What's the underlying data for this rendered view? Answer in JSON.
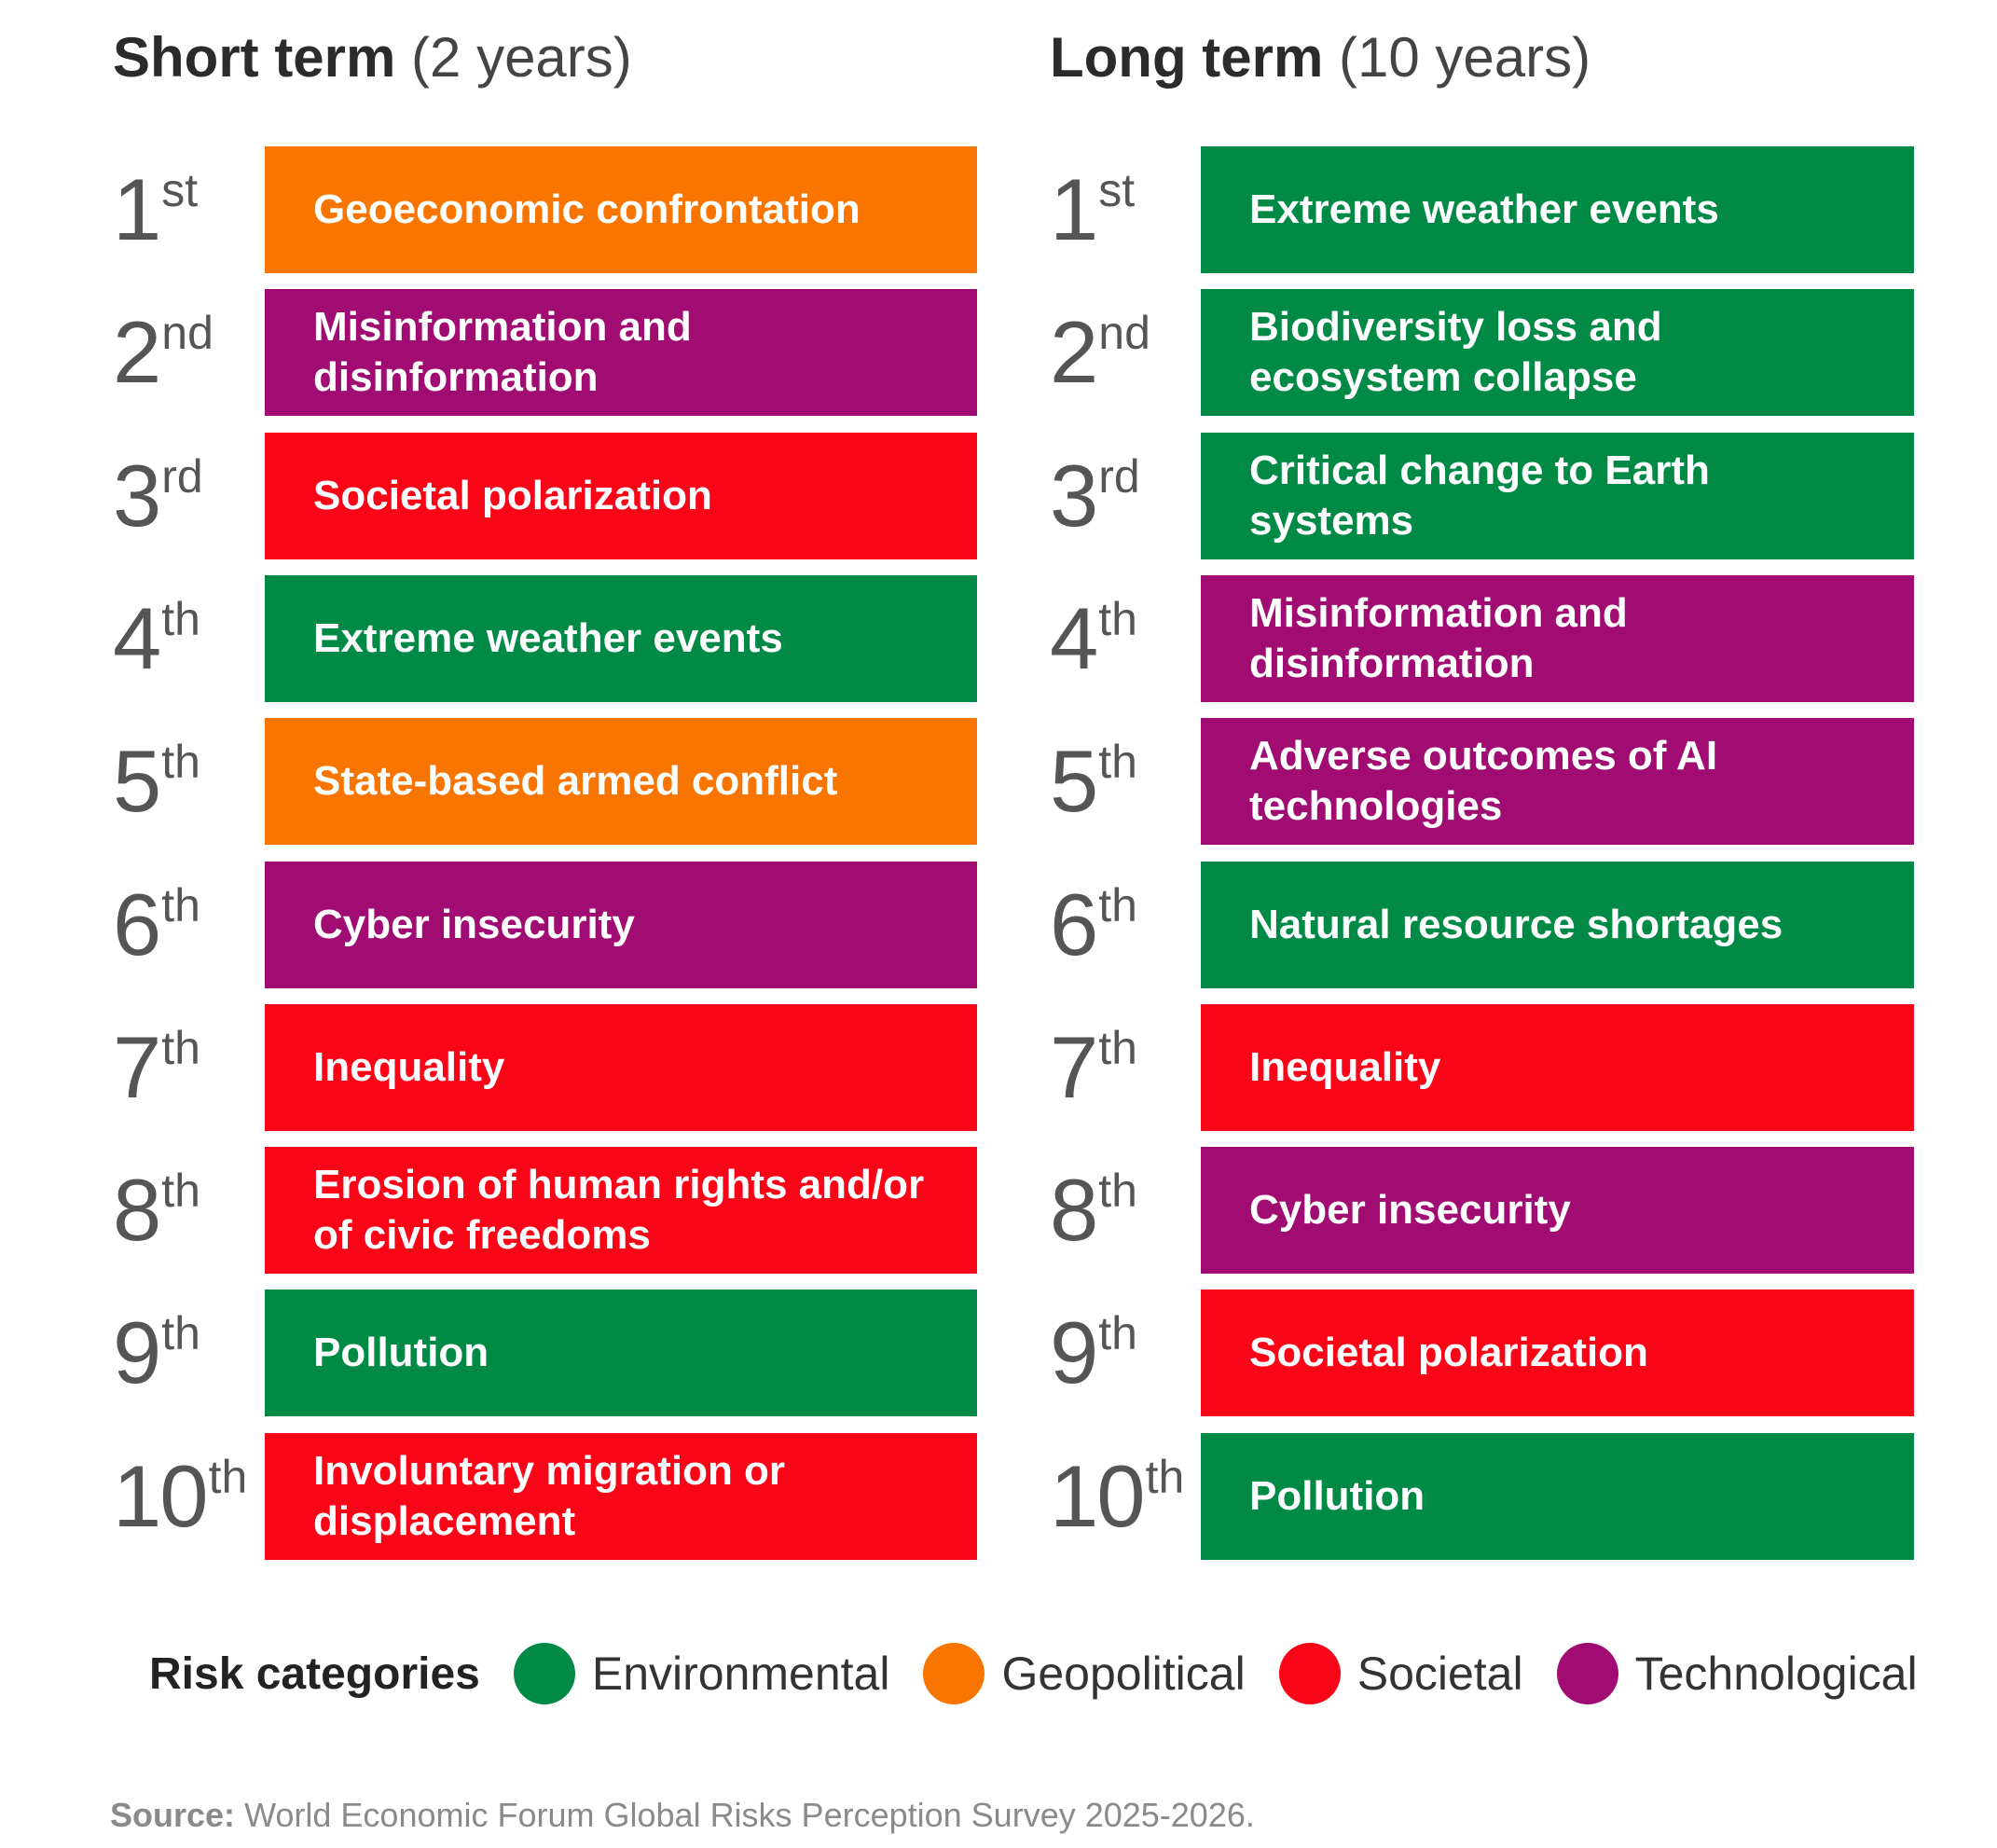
{
  "columns": [
    {
      "title_strong": "Short term",
      "title_light": "(2 years)",
      "items": [
        {
          "rank": "1",
          "suffix": "st",
          "label": "Geoeconomic confrontation",
          "category": "Geopolitical"
        },
        {
          "rank": "2",
          "suffix": "nd",
          "label": "Misinformation and disinformation",
          "category": "Technological"
        },
        {
          "rank": "3",
          "suffix": "rd",
          "label": "Societal polarization",
          "category": "Societal"
        },
        {
          "rank": "4",
          "suffix": "th",
          "label": "Extreme weather events",
          "category": "Environmental"
        },
        {
          "rank": "5",
          "suffix": "th",
          "label": "State-based armed conflict",
          "category": "Geopolitical"
        },
        {
          "rank": "6",
          "suffix": "th",
          "label": "Cyber insecurity",
          "category": "Technological"
        },
        {
          "rank": "7",
          "suffix": "th",
          "label": "Inequality",
          "category": "Societal"
        },
        {
          "rank": "8",
          "suffix": "th",
          "label": "Erosion of human rights and/or of civic freedoms",
          "category": "Societal"
        },
        {
          "rank": "9",
          "suffix": "th",
          "label": "Pollution",
          "category": "Environmental"
        },
        {
          "rank": "10",
          "suffix": "th",
          "label": "Involuntary migration or displacement",
          "category": "Societal"
        }
      ]
    },
    {
      "title_strong": "Long term",
      "title_light": "(10 years)",
      "items": [
        {
          "rank": "1",
          "suffix": "st",
          "label": "Extreme weather events",
          "category": "Environmental"
        },
        {
          "rank": "2",
          "suffix": "nd",
          "label": "Biodiversity loss and ecosystem collapse",
          "category": "Environmental"
        },
        {
          "rank": "3",
          "suffix": "rd",
          "label": "Critical change to Earth systems",
          "category": "Environmental"
        },
        {
          "rank": "4",
          "suffix": "th",
          "label": "Misinformation and disinformation",
          "category": "Technological"
        },
        {
          "rank": "5",
          "suffix": "th",
          "label": "Adverse outcomes of AI technologies",
          "category": "Technological"
        },
        {
          "rank": "6",
          "suffix": "th",
          "label": "Natural resource shortages",
          "category": "Environmental"
        },
        {
          "rank": "7",
          "suffix": "th",
          "label": "Inequality",
          "category": "Societal"
        },
        {
          "rank": "8",
          "suffix": "th",
          "label": "Cyber insecurity",
          "category": "Technological"
        },
        {
          "rank": "9",
          "suffix": "th",
          "label": "Societal polarization",
          "category": "Societal"
        },
        {
          "rank": "10",
          "suffix": "th",
          "label": "Pollution",
          "category": "Environmental"
        }
      ]
    }
  ],
  "legend": {
    "title": "Risk categories",
    "items": [
      {
        "label": "Environmental",
        "color": "#008A45"
      },
      {
        "label": "Geopolitical",
        "color": "#F77500"
      },
      {
        "label": "Societal",
        "color": "#F90518"
      },
      {
        "label": "Technological",
        "color": "#A00C72"
      }
    ]
  },
  "source": {
    "label": "Source:",
    "text": "World Economic Forum Global Risks Perception Survey 2025-2026."
  },
  "chart_data": {
    "type": "table",
    "title": "",
    "columns": [
      "Short term (2 years)",
      "Long term (10 years)"
    ],
    "ranks": [
      "1st",
      "2nd",
      "3rd",
      "4th",
      "5th",
      "6th",
      "7th",
      "8th",
      "9th",
      "10th"
    ],
    "series": [
      {
        "name": "Short term (2 years)",
        "values": [
          "Geoeconomic confrontation",
          "Misinformation and disinformation",
          "Societal polarization",
          "Extreme weather events",
          "State-based armed conflict",
          "Cyber insecurity",
          "Inequality",
          "Erosion of human rights and/or of civic freedoms",
          "Pollution",
          "Involuntary migration or displacement"
        ],
        "categories": [
          "Geopolitical",
          "Technological",
          "Societal",
          "Environmental",
          "Geopolitical",
          "Technological",
          "Societal",
          "Societal",
          "Environmental",
          "Societal"
        ]
      },
      {
        "name": "Long term (10 years)",
        "values": [
          "Extreme weather events",
          "Biodiversity loss and ecosystem collapse",
          "Critical change to Earth systems",
          "Misinformation and disinformation",
          "Adverse outcomes of AI technologies",
          "Natural resource shortages",
          "Inequality",
          "Cyber insecurity",
          "Societal polarization",
          "Pollution"
        ],
        "categories": [
          "Environmental",
          "Environmental",
          "Environmental",
          "Technological",
          "Technological",
          "Environmental",
          "Societal",
          "Technological",
          "Societal",
          "Environmental"
        ]
      }
    ],
    "legend_title": "Risk categories",
    "legend": [
      "Environmental",
      "Geopolitical",
      "Societal",
      "Technological"
    ]
  }
}
